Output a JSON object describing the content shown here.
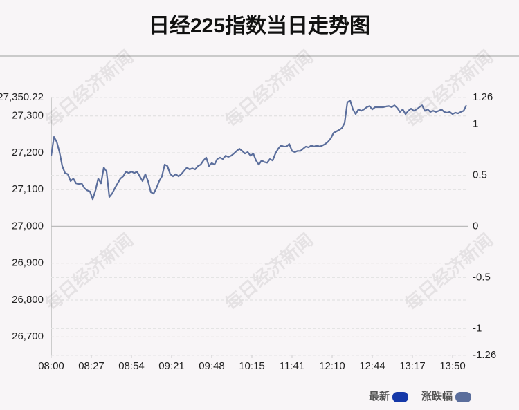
{
  "chart_data": {
    "type": "line",
    "title": "日经225指数当日走势图",
    "watermark": "每日经济新闻",
    "series": [
      {
        "color": "#5b6e9c",
        "values": [
          27192,
          27243,
          27230,
          27202,
          27164,
          27145,
          27142,
          27123,
          27130,
          27117,
          27115,
          27117,
          27104,
          27098,
          27095,
          27074,
          27098,
          27130,
          27117,
          27160,
          27149,
          27080,
          27089,
          27104,
          27117,
          27130,
          27136,
          27149,
          27145,
          27149,
          27145,
          27149,
          27136,
          27123,
          27142,
          27123,
          27093,
          27089,
          27104,
          27123,
          27136,
          27168,
          27164,
          27142,
          27136,
          27142,
          27136,
          27142,
          27151,
          27160,
          27155,
          27158,
          27155,
          27164,
          27168,
          27179,
          27187,
          27164,
          27172,
          27168,
          27183,
          27187,
          27183,
          27192,
          27189,
          27192,
          27198,
          27205,
          27211,
          27205,
          27198,
          27202,
          27192,
          27198,
          27179,
          27168,
          27179,
          27175,
          27173,
          27183,
          27179,
          27198,
          27211,
          27220,
          27217,
          27217,
          27224,
          27205,
          27202,
          27205,
          27205,
          27211,
          27217,
          27215,
          27220,
          27217,
          27220,
          27217,
          27220,
          27224,
          27230,
          27239,
          27254,
          27258,
          27262,
          27267,
          27281,
          27337,
          27342,
          27318,
          27305,
          27318,
          27314,
          27318,
          27324,
          27327,
          27318,
          27324,
          27324,
          27324,
          27324,
          27326,
          27327,
          27324,
          27329,
          27322,
          27311,
          27318,
          27305,
          27314,
          27320,
          27314,
          27318,
          27324,
          27329,
          27314,
          27318,
          27311,
          27314,
          27311,
          27314,
          27318,
          27311,
          27309,
          27311,
          27305,
          27309,
          27307,
          27311,
          27314,
          27329
        ]
      }
    ],
    "legend": [
      {
        "name": "最新",
        "color": "#1538a8"
      },
      {
        "name": "涨跌幅",
        "color": "#5b6e9c"
      }
    ],
    "xlim": [
      0,
      150
    ],
    "xticks": [
      {
        "value": 0,
        "label": "08:00"
      },
      {
        "value": 14.5,
        "label": "08:27"
      },
      {
        "value": 29,
        "label": "08:54"
      },
      {
        "value": 43.5,
        "label": "09:21"
      },
      {
        "value": 58,
        "label": "09:48"
      },
      {
        "value": 72.5,
        "label": "10:15"
      },
      {
        "value": 87,
        "label": "11:41"
      },
      {
        "value": 101.5,
        "label": "12:10"
      },
      {
        "value": 116,
        "label": "12:44"
      },
      {
        "value": 130.5,
        "label": "13:17"
      },
      {
        "value": 145,
        "label": "13:50"
      }
    ],
    "ylim": [
      26649.78,
      27350.22
    ],
    "yticks": [
      {
        "value": 27350.22,
        "label": "27,350.22"
      },
      {
        "value": 27300,
        "label": "27,300"
      },
      {
        "value": 27200,
        "label": "27,200"
      },
      {
        "value": 27100,
        "label": "27,100"
      },
      {
        "value": 27000,
        "label": "27,000"
      },
      {
        "value": 26900,
        "label": "26,900"
      },
      {
        "value": 26800,
        "label": "26,800"
      },
      {
        "value": 26700,
        "label": "26,700"
      }
    ],
    "y2lim": [
      -1.26,
      1.26
    ],
    "y2ticks": [
      1.26,
      1,
      0.5,
      0,
      -0.5,
      -1,
      -1.26
    ]
  }
}
